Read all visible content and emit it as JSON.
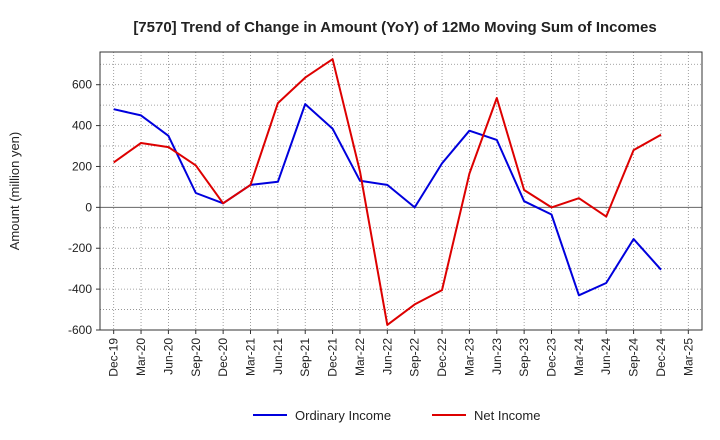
{
  "chart_data": {
    "type": "line",
    "title": "[7570]  Trend of Change in Amount (YoY) of 12Mo Moving Sum of Incomes",
    "xlabel": "",
    "ylabel": "Amount (million yen)",
    "ylim": [
      -600,
      760
    ],
    "yticks": [
      600,
      400,
      200,
      0,
      -200,
      -400,
      -600
    ],
    "categories": [
      "Dec-19",
      "Mar-20",
      "Jun-20",
      "Sep-20",
      "Dec-20",
      "Mar-21",
      "Jun-21",
      "Sep-21",
      "Dec-21",
      "Mar-22",
      "Jun-22",
      "Sep-22",
      "Dec-22",
      "Mar-23",
      "Jun-23",
      "Sep-23",
      "Dec-23",
      "Mar-24",
      "Jun-24",
      "Sep-24",
      "Dec-24",
      "Mar-25"
    ],
    "grid": true,
    "legend_position": "bottom",
    "series": [
      {
        "name": "Ordinary Income",
        "color": "#0000dd",
        "values": [
          480,
          450,
          350,
          70,
          20,
          110,
          125,
          505,
          385,
          130,
          110,
          0,
          215,
          375,
          330,
          30,
          -35,
          -430,
          -370,
          -155,
          -305,
          null
        ]
      },
      {
        "name": "Net Income",
        "color": "#dd0000",
        "values": [
          220,
          315,
          295,
          205,
          20,
          110,
          510,
          635,
          725,
          175,
          -575,
          -475,
          -405,
          165,
          535,
          85,
          0,
          45,
          -45,
          280,
          355,
          null
        ]
      }
    ]
  }
}
